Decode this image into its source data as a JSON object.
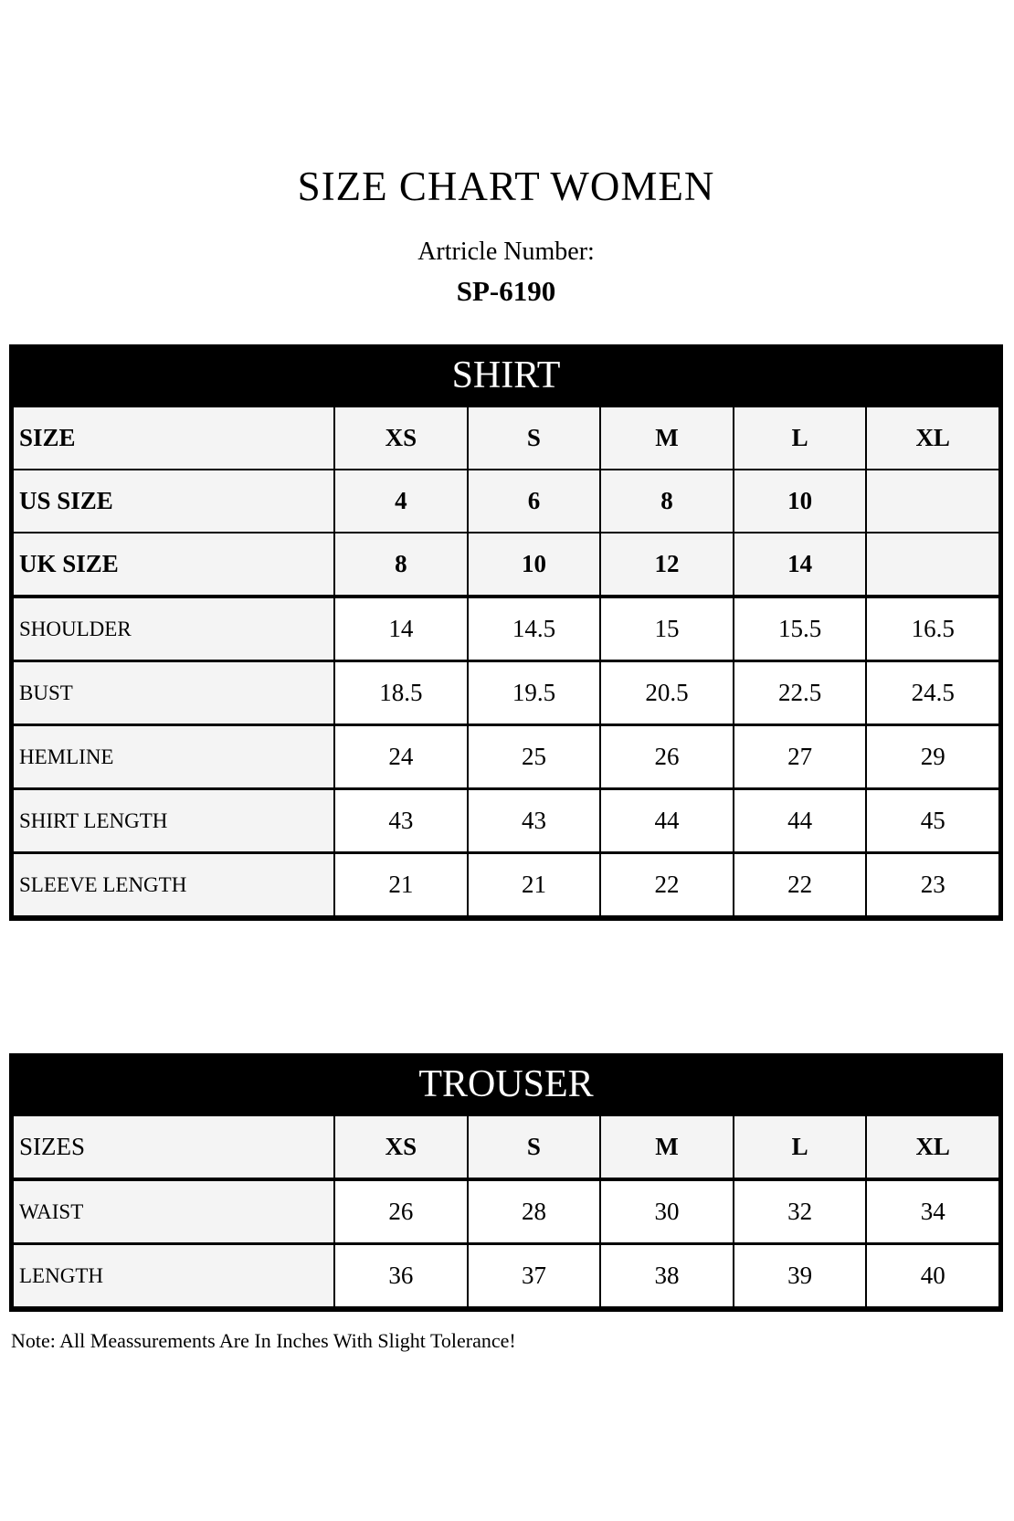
{
  "title": "SIZE CHART WOMEN",
  "article": {
    "label": "Artricle Number:",
    "number": "SP-6190"
  },
  "shirt_table": {
    "title": "SHIRT",
    "rows": [
      {
        "label": "SIZE",
        "values": [
          "XS",
          "S",
          "M",
          "L",
          "XL"
        ]
      },
      {
        "label": "US SIZE",
        "values": [
          "4",
          "6",
          "8",
          "10",
          ""
        ]
      },
      {
        "label": "UK SIZE",
        "values": [
          "8",
          "10",
          "12",
          "14",
          ""
        ]
      },
      {
        "label": "SHOULDER",
        "values": [
          "14",
          "14.5",
          "15",
          "15.5",
          "16.5"
        ]
      },
      {
        "label": "BUST",
        "values": [
          "18.5",
          "19.5",
          "20.5",
          "22.5",
          "24.5"
        ]
      },
      {
        "label": "HEMLINE",
        "values": [
          "24",
          "25",
          "26",
          "27",
          "29"
        ]
      },
      {
        "label": "SHIRT LENGTH",
        "values": [
          "43",
          "43",
          "44",
          "44",
          "45"
        ]
      },
      {
        "label": "SLEEVE LENGTH",
        "values": [
          "21",
          "21",
          "22",
          "22",
          "23"
        ]
      }
    ]
  },
  "trouser_table": {
    "title": "TROUSER",
    "rows": [
      {
        "label": "SIZES",
        "values": [
          "XS",
          "S",
          "M",
          "L",
          "XL"
        ]
      },
      {
        "label": "WAIST",
        "values": [
          "26",
          "28",
          "30",
          "32",
          "34"
        ]
      },
      {
        "label": "LENGTH",
        "values": [
          "36",
          "37",
          "38",
          "39",
          "40"
        ]
      }
    ]
  },
  "note": "Note: All Meassurements Are In Inches With Slight Tolerance!",
  "colors": {
    "header_bg": "#000000",
    "header_text": "#ffffff",
    "cell_shaded": "#f4f4f4",
    "cell_plain": "#ffffff",
    "border": "#000000"
  }
}
